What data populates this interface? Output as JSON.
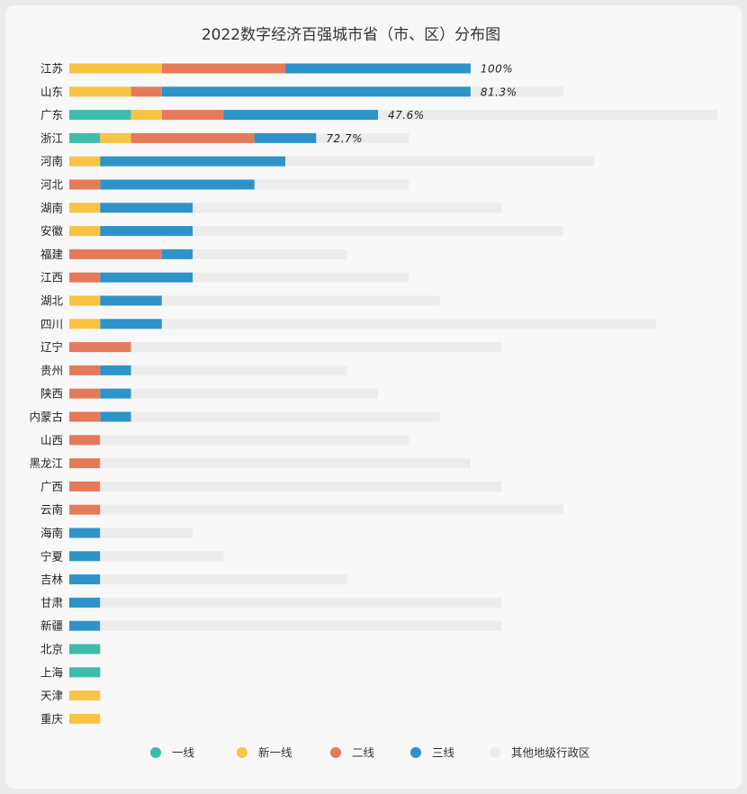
{
  "chart_data": {
    "type": "bar",
    "orientation": "horizontal",
    "stacked": true,
    "title": "2022数字经济百强城市省（市、区）分布图",
    "categories": [
      "江苏",
      "山东",
      "广东",
      "浙江",
      "河南",
      "河北",
      "湖南",
      "安徽",
      "福建",
      "江西",
      "湖北",
      "四川",
      "辽宁",
      "贵州",
      "陕西",
      "内蒙古",
      "山西",
      "黑龙江",
      "广西",
      "云南",
      "海南",
      "宁夏",
      "吉林",
      "甘肃",
      "新疆",
      "北京",
      "上海",
      "天津",
      "重庆"
    ],
    "series": [
      {
        "name": "一线",
        "color": "#3dbcaa",
        "values": [
          0,
          0,
          2,
          1,
          0,
          0,
          0,
          0,
          0,
          0,
          0,
          0,
          0,
          0,
          0,
          0,
          0,
          0,
          0,
          0,
          0,
          0,
          0,
          0,
          0,
          1,
          1,
          0,
          0
        ]
      },
      {
        "name": "新一线",
        "color": "#f7c443",
        "values": [
          3,
          2,
          1,
          1,
          1,
          0,
          1,
          1,
          0,
          0,
          1,
          1,
          0,
          0,
          0,
          0,
          0,
          0,
          0,
          0,
          0,
          0,
          0,
          0,
          0,
          0,
          0,
          1,
          1
        ]
      },
      {
        "name": "二线",
        "color": "#e57a5a",
        "values": [
          4,
          1,
          2,
          4,
          0,
          1,
          0,
          0,
          3,
          1,
          0,
          0,
          2,
          1,
          1,
          1,
          1,
          1,
          1,
          1,
          0,
          0,
          0,
          0,
          0,
          0,
          0,
          0,
          0
        ]
      },
      {
        "name": "三线",
        "color": "#2e93c8",
        "values": [
          6,
          10,
          5,
          2,
          6,
          5,
          3,
          3,
          1,
          3,
          2,
          2,
          0,
          1,
          1,
          1,
          0,
          0,
          0,
          0,
          1,
          1,
          1,
          1,
          1,
          0,
          0,
          0,
          0
        ]
      },
      {
        "name": "其他地级行政区",
        "color": "#ececec",
        "values": [
          0,
          3,
          11,
          3,
          10,
          5,
          10,
          12,
          5,
          7,
          9,
          16,
          12,
          7,
          8,
          10,
          10,
          12,
          13,
          15,
          3,
          4,
          8,
          13,
          13,
          0,
          0,
          0,
          0
        ]
      }
    ],
    "data_labels": {
      "江苏": "100%",
      "山东": "81.3%",
      "广东": "47.6%",
      "浙江": "72.7%"
    },
    "legend_position": "bottom",
    "grid": false
  }
}
